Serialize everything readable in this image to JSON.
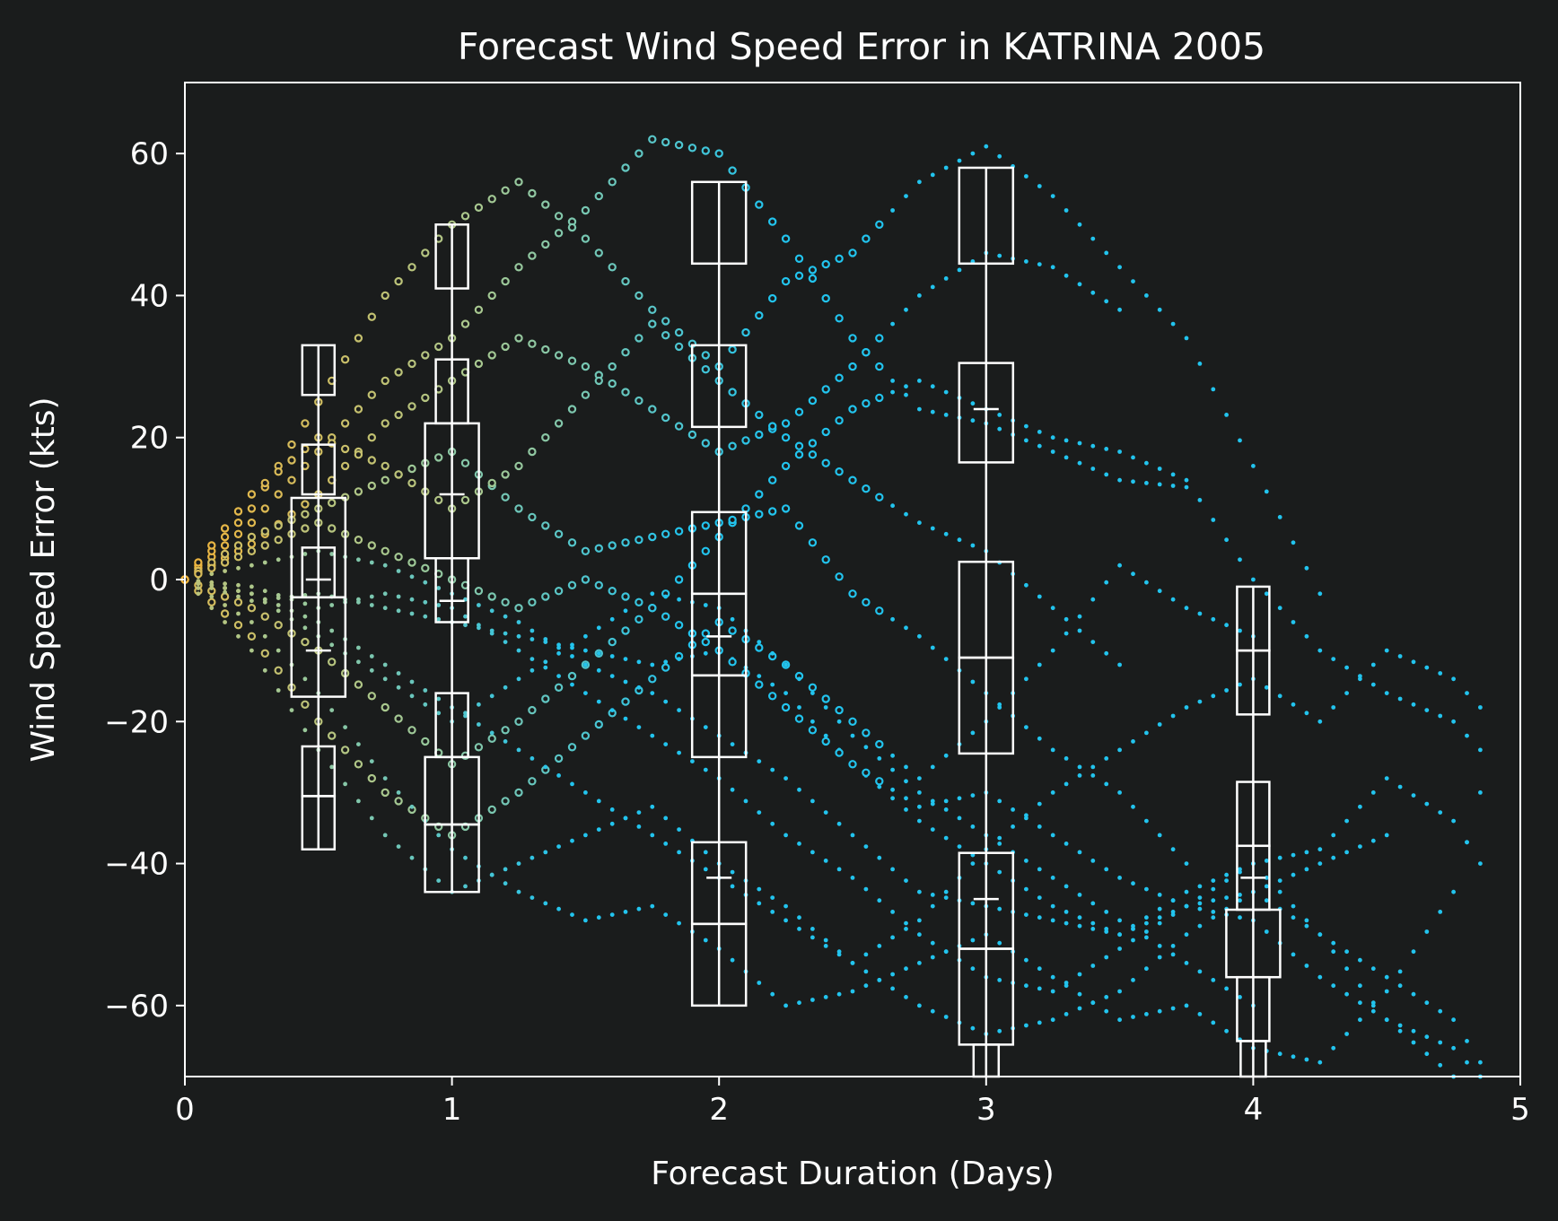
{
  "chart_data": {
    "type": "scatter",
    "title": "Forecast Wind Speed Error in KATRINA 2005",
    "xlabel": "Forecast Duration (Days)",
    "ylabel": "Wind Speed Error (kts)",
    "xlim": [
      0,
      5
    ],
    "ylim": [
      -70,
      70
    ],
    "xticks": [
      "0",
      "1",
      "2",
      "3",
      "4",
      "5"
    ],
    "yticks": [
      "60",
      "40",
      "20",
      "0",
      "−20",
      "−40",
      "−60"
    ],
    "grid": false,
    "legend": "none",
    "colors": {
      "background": "#1a1c1c",
      "axes": "#ffffff",
      "early_points": "#f0b43c",
      "mid_points": "#a8c890",
      "late_points": "#22c4ee"
    },
    "forecast_tracks": [
      {
        "x": [
          0,
          0.25,
          0.5,
          0.75,
          1,
          1.25,
          1.5,
          1.75,
          2,
          2.25,
          2.5,
          2.75,
          3,
          3.25,
          3.5,
          3.75
        ],
        "y": [
          0,
          8,
          18,
          28,
          34,
          44,
          52,
          62,
          60,
          48,
          34,
          24,
          22,
          18,
          14,
          13
        ]
      },
      {
        "x": [
          0,
          0.25,
          0.5,
          0.75,
          1,
          1.25,
          1.5,
          1.75,
          2,
          2.25,
          2.5,
          2.75,
          3,
          3.25,
          3.5,
          3.75,
          4,
          4.25
        ],
        "y": [
          0,
          10,
          25,
          40,
          50,
          56,
          48,
          38,
          30,
          42,
          46,
          56,
          61,
          54,
          44,
          34,
          16,
          -2
        ]
      },
      {
        "x": [
          0,
          0.25,
          0.5,
          0.75,
          1,
          1.25,
          1.5,
          1.75,
          2,
          2.25,
          2.5,
          2.75,
          3,
          3.25,
          3.5
        ],
        "y": [
          0,
          5,
          12,
          22,
          28,
          34,
          30,
          24,
          18,
          22,
          30,
          40,
          46,
          44,
          38
        ]
      },
      {
        "x": [
          0,
          0.25,
          0.5,
          0.75,
          1,
          1.25,
          1.5,
          1.75,
          2,
          2.25,
          2.5,
          2.75,
          3,
          3.25,
          3.5,
          3.75,
          4,
          4.25,
          4.5,
          4.75,
          4.85
        ],
        "y": [
          0,
          -4,
          -10,
          -18,
          -26,
          -20,
          -12,
          -4,
          6,
          16,
          24,
          28,
          24,
          20,
          18,
          14,
          0,
          -10,
          -16,
          -20,
          -24
        ]
      },
      {
        "x": [
          0,
          0.25,
          0.5,
          0.75,
          1,
          1.25,
          1.5,
          1.75,
          2,
          2.25,
          2.5,
          2.75,
          3,
          3.25,
          3.5,
          3.75,
          4
        ],
        "y": [
          0,
          -8,
          -20,
          -30,
          -36,
          -30,
          -22,
          -14,
          -6,
          -12,
          -20,
          -28,
          -20,
          -10,
          2,
          -4,
          -8
        ]
      },
      {
        "x": [
          0,
          0.25,
          0.5,
          0.75,
          1,
          1.25,
          1.5,
          1.75,
          2,
          2.25,
          2.5,
          2.75,
          3,
          3.25,
          3.5,
          3.75,
          4,
          4.25,
          4.5,
          4.75,
          4.85
        ],
        "y": [
          0,
          -10,
          -24,
          -36,
          -44,
          -40,
          -36,
          -32,
          -40,
          -46,
          -54,
          -48,
          -38,
          -30,
          -24,
          -18,
          -14,
          -20,
          -10,
          -14,
          -18
        ]
      },
      {
        "x": [
          0,
          0.25,
          0.5,
          0.75,
          1,
          1.25,
          1.5,
          1.75,
          2,
          2.25,
          2.5,
          2.75,
          3,
          3.25,
          3.5,
          3.75,
          4,
          4.25,
          4.5,
          4.75,
          4.85
        ],
        "y": [
          0,
          -6,
          -16,
          -28,
          -38,
          -44,
          -48,
          -46,
          -52,
          -60,
          -58,
          -54,
          -50,
          -56,
          -62,
          -60,
          -66,
          -68,
          -58,
          -44,
          -30
        ]
      },
      {
        "x": [
          0,
          0.25,
          0.5,
          0.75,
          1,
          1.25,
          1.5,
          1.75,
          2,
          2.25,
          2.5,
          2.75,
          3,
          3.25,
          3.5,
          3.75,
          4,
          4.25,
          4.5,
          4.75,
          4.85
        ],
        "y": [
          0,
          -2,
          -6,
          -12,
          -18,
          -24,
          -30,
          -36,
          -42,
          -48,
          -54,
          -60,
          -64,
          -62,
          -58,
          -50,
          -44,
          -50,
          -56,
          -62,
          -68
        ]
      },
      {
        "x": [
          0,
          0.25,
          0.5,
          0.75,
          1,
          1.25,
          1.5,
          1.75,
          2,
          2.25,
          2.5,
          2.75,
          3,
          3.25,
          3.5,
          3.75,
          4,
          4.25,
          4.5,
          4.75
        ],
        "y": [
          0,
          -3,
          -2,
          -4,
          -6,
          -8,
          -10,
          -12,
          -10,
          -16,
          -26,
          -34,
          -40,
          -46,
          -50,
          -44,
          -40,
          -50,
          -62,
          -70
        ]
      },
      {
        "x": [
          0,
          0.25,
          0.5,
          0.75,
          1,
          1.25,
          1.5,
          1.75,
          2,
          2.25,
          2.5,
          2.75,
          3,
          3.25,
          3.5,
          3.75,
          4,
          4.25,
          4.5,
          4.75,
          4.85
        ],
        "y": [
          0,
          2,
          4,
          2,
          -2,
          -6,
          -12,
          -16,
          -22,
          -28,
          -36,
          -44,
          -46,
          -48,
          -50,
          -46,
          -48,
          -56,
          -62,
          -66,
          -70
        ]
      },
      {
        "x": [
          0,
          0.25,
          0.5,
          0.75,
          1,
          1.25,
          1.5,
          1.75,
          2,
          2.25,
          2.5,
          2.75,
          3,
          3.25,
          3.5,
          3.75
        ],
        "y": [
          0,
          6,
          10,
          14,
          18,
          10,
          4,
          6,
          8,
          10,
          -2,
          -8,
          -16,
          -24,
          -30,
          -40
        ]
      },
      {
        "x": [
          0,
          0.25,
          0.5,
          0.75,
          1,
          1.25,
          1.5,
          1.75,
          2,
          2.25,
          2.5,
          2.75,
          3,
          3.25,
          3.5,
          3.75,
          4
        ],
        "y": [
          0,
          -2,
          -8,
          -14,
          -20,
          -14,
          -8,
          -2,
          -4,
          -12,
          -22,
          -30,
          -36,
          -42,
          -48,
          -54,
          -60
        ]
      },
      {
        "x": [
          0,
          0.25,
          0.5,
          0.75,
          1,
          1.25,
          1.5,
          1.75,
          2,
          2.25,
          2.5,
          2.75,
          3,
          3.25,
          3.5,
          3.75,
          4,
          4.25,
          4.5,
          4.75,
          4.85
        ],
        "y": [
          0,
          4,
          8,
          4,
          0,
          -4,
          0,
          -4,
          -10,
          -18,
          -26,
          -32,
          -30,
          -36,
          -42,
          -46,
          -40,
          -38,
          -28,
          -34,
          -40
        ]
      },
      {
        "x": [
          0,
          0.25,
          0.5,
          0.75,
          1,
          1.25,
          1.5,
          1.75,
          2,
          2.25,
          2.5,
          2.75,
          3,
          3.25,
          3.5,
          3.75,
          4,
          4.25,
          4.5
        ],
        "y": [
          0,
          -1,
          -4,
          -2,
          -4,
          -10,
          -16,
          -22,
          -28,
          -36,
          -42,
          -50,
          -56,
          -58,
          -52,
          -46,
          -44,
          -40,
          -36
        ]
      },
      {
        "x": [
          0,
          0.25,
          0.5,
          0.75,
          1,
          1.25,
          1.5,
          1.75,
          2,
          2.25,
          2.5,
          2.75,
          3,
          3.25,
          3.5
        ],
        "y": [
          0,
          12,
          20,
          16,
          10,
          16,
          26,
          36,
          28,
          20,
          14,
          8,
          4,
          -4,
          -12
        ]
      }
    ],
    "box_groups": [
      {
        "x": 0.5,
        "boxes": [
          [
            26,
            33
          ],
          [
            12,
            19
          ],
          [
            -2.5,
            11.5
          ],
          [
            -2.5,
            4.5
          ],
          [
            -16.5,
            -2.5
          ],
          [
            -30.5,
            -23.5
          ],
          [
            -38,
            -30.5
          ]
        ],
        "whisker": [
          -38,
          33
        ],
        "medians": [
          0,
          -10
        ]
      },
      {
        "x": 1.0,
        "boxes": [
          [
            41,
            50
          ],
          [
            22,
            31
          ],
          [
            3,
            22
          ],
          [
            -6,
            3
          ],
          [
            -25,
            -16
          ],
          [
            -34.5,
            -25
          ],
          [
            -44,
            -34.5
          ]
        ],
        "whisker": [
          -44,
          50
        ],
        "medians": [
          12,
          -3
        ]
      },
      {
        "x": 2.0,
        "boxes": [
          [
            44.5,
            56
          ],
          [
            21.5,
            33
          ],
          [
            -2,
            9.5
          ],
          [
            -13.5,
            -2
          ],
          [
            -25,
            -13.5
          ],
          [
            -48.5,
            -37
          ],
          [
            -60,
            -48.5
          ]
        ],
        "whisker": [
          -60,
          56
        ],
        "medians": [
          -8,
          -42
        ]
      },
      {
        "x": 3.0,
        "boxes": [
          [
            44.5,
            58
          ],
          [
            16.5,
            30.5
          ],
          [
            -11,
            2.5
          ],
          [
            -24.5,
            -11
          ],
          [
            -52,
            -38.5
          ],
          [
            -65.5,
            -52
          ],
          [
            -70,
            -65.5
          ]
        ],
        "whisker": [
          -70,
          58
        ],
        "medians": [
          24,
          -45
        ]
      },
      {
        "x": 4.0,
        "boxes": [
          [
            -10,
            -1
          ],
          [
            -19,
            -10
          ],
          [
            -37.5,
            -28.5
          ],
          [
            -46.5,
            -37.5
          ],
          [
            -56,
            -46.5
          ],
          [
            -65,
            -56
          ],
          [
            -70,
            -65
          ]
        ],
        "whisker": [
          -70,
          -1
        ],
        "medians": [
          -42
        ]
      }
    ]
  }
}
